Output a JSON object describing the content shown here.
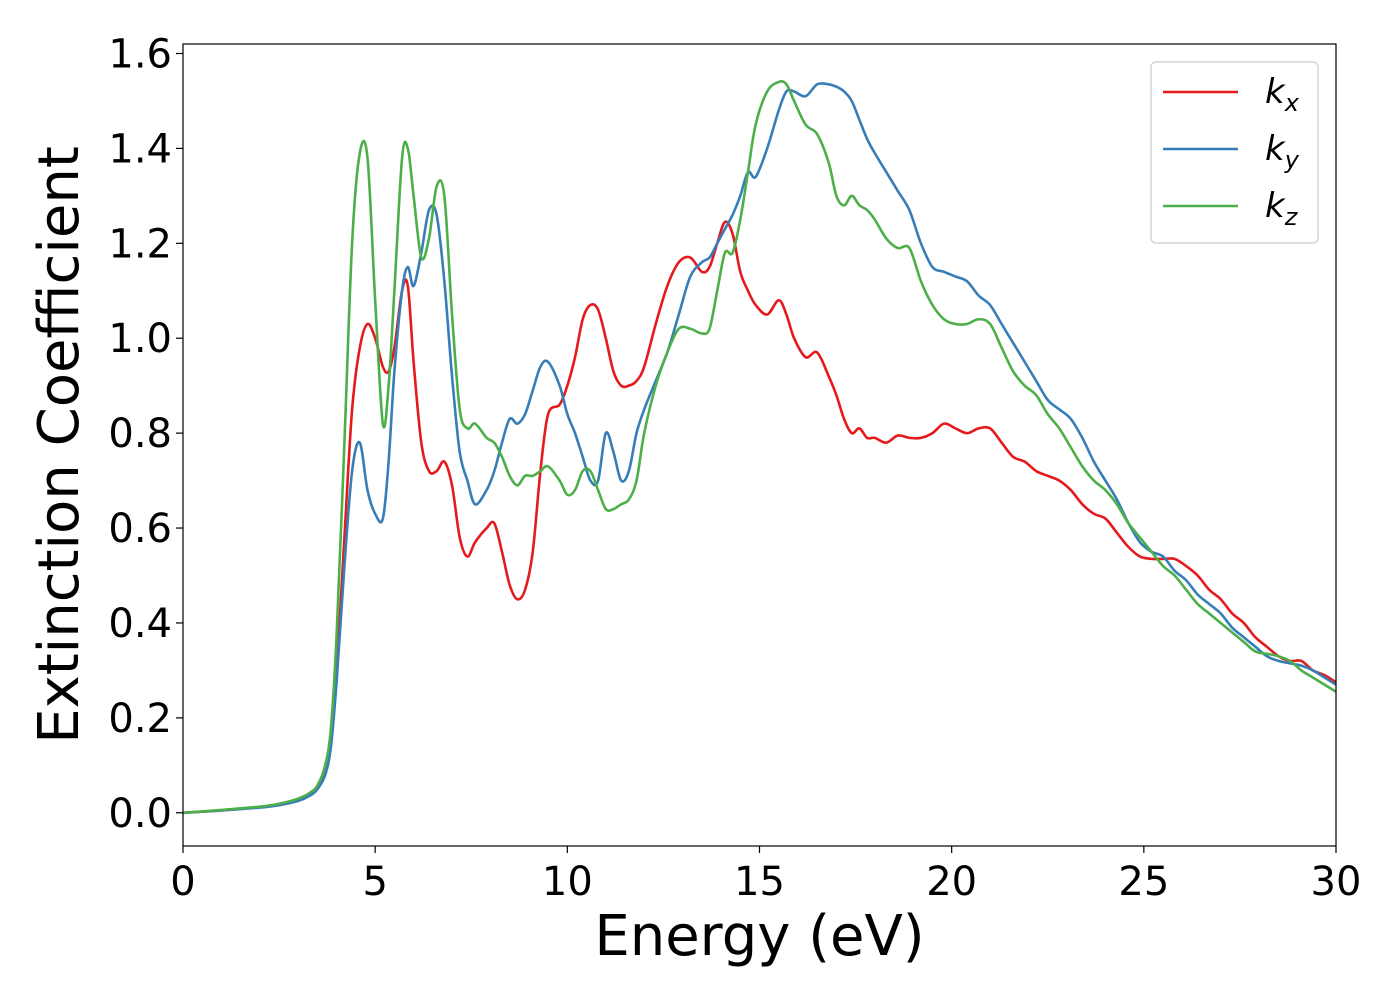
{
  "chart_data": {
    "type": "line",
    "xlabel": "Energy (eV)",
    "ylabel": "Extinction Coefficient",
    "xlim": [
      0,
      30
    ],
    "ylim": [
      -0.07,
      1.62
    ],
    "xticks": [
      0,
      5,
      10,
      15,
      20,
      25,
      30
    ],
    "xtick_labels": [
      "0",
      "5",
      "10",
      "15",
      "20",
      "25",
      "30"
    ],
    "yticks": [
      0.0,
      0.2,
      0.4,
      0.6,
      0.8,
      1.0,
      1.2,
      1.4,
      1.6
    ],
    "ytick_labels": [
      "0.0",
      "0.2",
      "0.4",
      "0.6",
      "0.8",
      "1.0",
      "1.2",
      "1.4",
      "1.6"
    ],
    "grid": false,
    "legend_position": "top-right",
    "series": [
      {
        "name": "k",
        "subscript": "x",
        "color": "#e41a1c",
        "x": [
          0,
          1,
          2,
          2.5,
          3,
          3.3,
          3.5,
          3.7,
          3.85,
          4.0,
          4.2,
          4.4,
          4.6,
          4.8,
          5.0,
          5.2,
          5.35,
          5.5,
          5.7,
          5.85,
          6.0,
          6.2,
          6.4,
          6.6,
          6.8,
          7.0,
          7.2,
          7.4,
          7.6,
          7.9,
          8.1,
          8.3,
          8.5,
          8.7,
          8.9,
          9.1,
          9.3,
          9.5,
          9.8,
          10.0,
          10.2,
          10.4,
          10.6,
          10.8,
          11.0,
          11.2,
          11.4,
          11.6,
          11.8,
          12.0,
          12.3,
          12.6,
          12.9,
          13.2,
          13.5,
          13.7,
          13.9,
          14.1,
          14.3,
          14.5,
          14.7,
          14.9,
          15.2,
          15.5,
          15.7,
          15.9,
          16.2,
          16.5,
          16.8,
          17.0,
          17.2,
          17.4,
          17.6,
          17.8,
          18.0,
          18.3,
          18.6,
          18.9,
          19.2,
          19.5,
          19.8,
          20.1,
          20.4,
          20.7,
          21.0,
          21.3,
          21.6,
          21.9,
          22.2,
          22.5,
          22.8,
          23.1,
          23.4,
          23.7,
          24.0,
          24.3,
          24.6,
          24.9,
          25.2,
          25.5,
          25.8,
          26.1,
          26.4,
          26.7,
          27.0,
          27.3,
          27.6,
          27.9,
          28.2,
          28.5,
          28.8,
          29.1,
          29.4,
          29.7,
          30.0
        ],
        "y": [
          0.0,
          0.005,
          0.012,
          0.018,
          0.028,
          0.04,
          0.055,
          0.09,
          0.15,
          0.3,
          0.58,
          0.85,
          0.98,
          1.03,
          1.0,
          0.94,
          0.93,
          0.98,
          1.1,
          1.11,
          0.95,
          0.78,
          0.72,
          0.72,
          0.74,
          0.69,
          0.58,
          0.54,
          0.57,
          0.6,
          0.61,
          0.55,
          0.48,
          0.45,
          0.47,
          0.55,
          0.72,
          0.84,
          0.86,
          0.9,
          0.96,
          1.04,
          1.07,
          1.06,
          1.0,
          0.93,
          0.9,
          0.9,
          0.91,
          0.94,
          1.03,
          1.11,
          1.16,
          1.17,
          1.14,
          1.15,
          1.2,
          1.245,
          1.22,
          1.14,
          1.1,
          1.07,
          1.05,
          1.08,
          1.05,
          1.0,
          0.96,
          0.97,
          0.92,
          0.88,
          0.83,
          0.8,
          0.81,
          0.79,
          0.79,
          0.78,
          0.795,
          0.79,
          0.79,
          0.8,
          0.82,
          0.81,
          0.8,
          0.81,
          0.81,
          0.78,
          0.75,
          0.74,
          0.72,
          0.71,
          0.7,
          0.68,
          0.65,
          0.63,
          0.62,
          0.59,
          0.56,
          0.54,
          0.535,
          0.535,
          0.535,
          0.52,
          0.5,
          0.47,
          0.45,
          0.42,
          0.4,
          0.37,
          0.35,
          0.33,
          0.32,
          0.32,
          0.3,
          0.29,
          0.275
        ]
      },
      {
        "name": "k",
        "subscript": "y",
        "color": "#377eb8",
        "x": [
          0,
          1,
          2,
          2.5,
          3,
          3.3,
          3.5,
          3.7,
          3.85,
          4.0,
          4.2,
          4.4,
          4.6,
          4.8,
          5.0,
          5.2,
          5.35,
          5.5,
          5.7,
          5.85,
          6.0,
          6.2,
          6.4,
          6.6,
          6.8,
          7.0,
          7.2,
          7.4,
          7.6,
          7.9,
          8.1,
          8.3,
          8.5,
          8.7,
          8.9,
          9.1,
          9.3,
          9.5,
          9.8,
          10.0,
          10.2,
          10.4,
          10.6,
          10.8,
          11.0,
          11.2,
          11.4,
          11.6,
          11.8,
          12.0,
          12.3,
          12.6,
          12.9,
          13.2,
          13.5,
          13.7,
          13.9,
          14.1,
          14.3,
          14.5,
          14.7,
          14.9,
          15.2,
          15.5,
          15.7,
          15.9,
          16.2,
          16.5,
          16.8,
          17.0,
          17.2,
          17.4,
          17.6,
          17.8,
          18.0,
          18.3,
          18.6,
          18.9,
          19.2,
          19.5,
          19.8,
          20.1,
          20.4,
          20.7,
          21.0,
          21.3,
          21.6,
          21.9,
          22.2,
          22.5,
          22.8,
          23.1,
          23.4,
          23.7,
          24.0,
          24.3,
          24.6,
          24.9,
          25.2,
          25.5,
          25.8,
          26.1,
          26.4,
          26.7,
          27.0,
          27.3,
          27.6,
          27.9,
          28.2,
          28.5,
          28.8,
          29.1,
          29.4,
          29.7,
          30.0
        ],
        "y": [
          0.0,
          0.005,
          0.011,
          0.016,
          0.025,
          0.036,
          0.05,
          0.08,
          0.14,
          0.28,
          0.52,
          0.72,
          0.78,
          0.68,
          0.63,
          0.62,
          0.74,
          0.93,
          1.1,
          1.15,
          1.11,
          1.18,
          1.27,
          1.26,
          1.12,
          0.92,
          0.76,
          0.7,
          0.65,
          0.68,
          0.72,
          0.78,
          0.83,
          0.82,
          0.84,
          0.89,
          0.94,
          0.95,
          0.9,
          0.84,
          0.8,
          0.75,
          0.7,
          0.7,
          0.8,
          0.76,
          0.7,
          0.72,
          0.8,
          0.85,
          0.91,
          0.97,
          1.05,
          1.13,
          1.16,
          1.17,
          1.2,
          1.23,
          1.26,
          1.3,
          1.35,
          1.34,
          1.4,
          1.48,
          1.52,
          1.52,
          1.51,
          1.535,
          1.535,
          1.53,
          1.52,
          1.5,
          1.46,
          1.42,
          1.39,
          1.35,
          1.31,
          1.27,
          1.2,
          1.15,
          1.14,
          1.13,
          1.12,
          1.09,
          1.07,
          1.03,
          0.99,
          0.95,
          0.91,
          0.87,
          0.85,
          0.83,
          0.79,
          0.74,
          0.7,
          0.66,
          0.61,
          0.57,
          0.55,
          0.54,
          0.51,
          0.49,
          0.46,
          0.44,
          0.42,
          0.39,
          0.37,
          0.35,
          0.33,
          0.32,
          0.315,
          0.31,
          0.3,
          0.285,
          0.27
        ]
      },
      {
        "name": "k",
        "subscript": "z",
        "color": "#4daf4a",
        "x": [
          0,
          1,
          2,
          2.5,
          3,
          3.3,
          3.5,
          3.7,
          3.85,
          4.0,
          4.2,
          4.4,
          4.6,
          4.8,
          5.0,
          5.2,
          5.35,
          5.5,
          5.7,
          5.85,
          6.0,
          6.2,
          6.4,
          6.6,
          6.8,
          7.0,
          7.2,
          7.4,
          7.6,
          7.9,
          8.1,
          8.3,
          8.5,
          8.7,
          8.9,
          9.1,
          9.3,
          9.5,
          9.8,
          10.0,
          10.2,
          10.4,
          10.6,
          10.8,
          11.0,
          11.2,
          11.4,
          11.6,
          11.8,
          12.0,
          12.3,
          12.6,
          12.9,
          13.2,
          13.5,
          13.7,
          13.9,
          14.1,
          14.3,
          14.5,
          14.7,
          14.9,
          15.2,
          15.5,
          15.7,
          15.9,
          16.2,
          16.5,
          16.8,
          17.0,
          17.2,
          17.4,
          17.6,
          17.8,
          18.0,
          18.3,
          18.6,
          18.9,
          19.2,
          19.5,
          19.8,
          20.1,
          20.4,
          20.7,
          21.0,
          21.3,
          21.6,
          21.9,
          22.2,
          22.5,
          22.8,
          23.1,
          23.4,
          23.7,
          24.0,
          24.3,
          24.6,
          24.9,
          25.2,
          25.5,
          25.8,
          26.1,
          26.4,
          26.7,
          27.0,
          27.3,
          27.6,
          27.9,
          28.2,
          28.5,
          28.8,
          29.1,
          29.4,
          29.7,
          30.0
        ],
        "y": [
          0.0,
          0.006,
          0.013,
          0.019,
          0.03,
          0.042,
          0.058,
          0.1,
          0.18,
          0.38,
          0.78,
          1.2,
          1.39,
          1.38,
          1.08,
          0.82,
          0.9,
          1.1,
          1.38,
          1.4,
          1.3,
          1.17,
          1.21,
          1.32,
          1.3,
          1.05,
          0.85,
          0.81,
          0.82,
          0.79,
          0.78,
          0.75,
          0.71,
          0.69,
          0.71,
          0.71,
          0.72,
          0.73,
          0.7,
          0.67,
          0.68,
          0.72,
          0.72,
          0.68,
          0.64,
          0.64,
          0.65,
          0.66,
          0.7,
          0.8,
          0.9,
          0.97,
          1.02,
          1.02,
          1.01,
          1.02,
          1.1,
          1.18,
          1.18,
          1.25,
          1.35,
          1.45,
          1.52,
          1.54,
          1.535,
          1.5,
          1.45,
          1.43,
          1.37,
          1.3,
          1.28,
          1.3,
          1.28,
          1.27,
          1.25,
          1.21,
          1.19,
          1.19,
          1.12,
          1.07,
          1.04,
          1.03,
          1.03,
          1.04,
          1.03,
          0.98,
          0.93,
          0.9,
          0.88,
          0.84,
          0.81,
          0.77,
          0.73,
          0.7,
          0.68,
          0.65,
          0.61,
          0.58,
          0.55,
          0.52,
          0.5,
          0.47,
          0.44,
          0.42,
          0.4,
          0.38,
          0.36,
          0.34,
          0.335,
          0.33,
          0.32,
          0.3,
          0.285,
          0.27,
          0.255
        ]
      }
    ]
  }
}
